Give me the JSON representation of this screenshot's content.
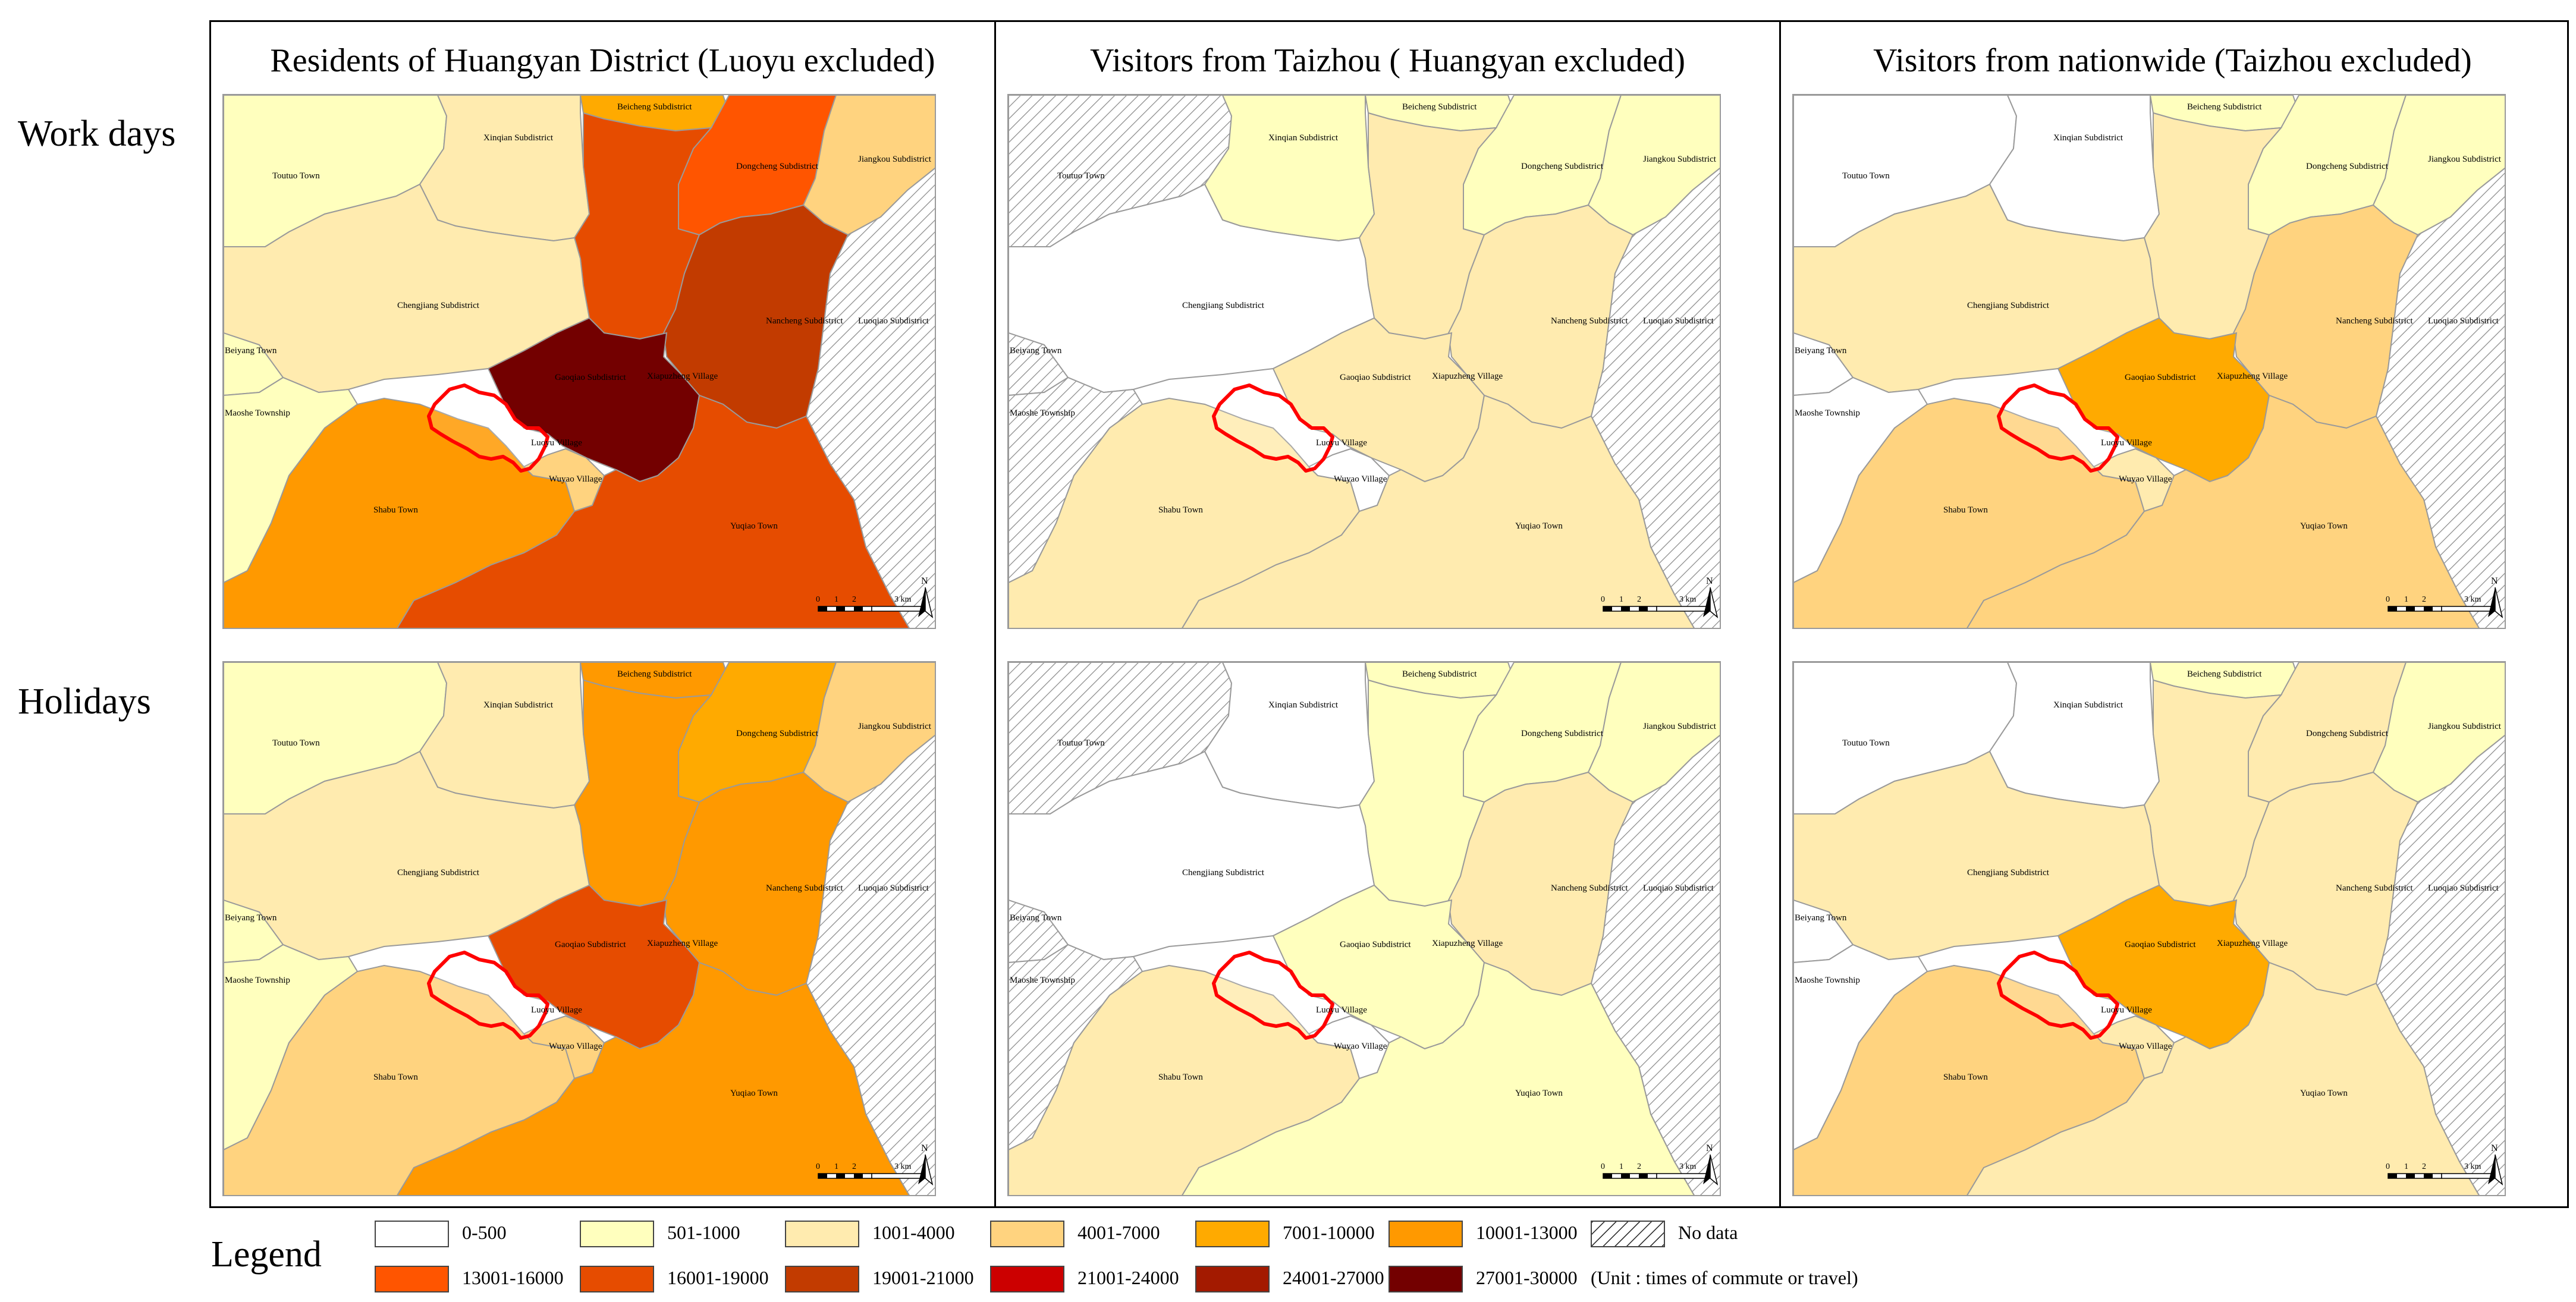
{
  "columns": [
    {
      "title": "Residents of Huangyan District (Luoyu excluded)"
    },
    {
      "title": "Visitors from Taizhou ( Huangyan excluded)"
    },
    {
      "title": "Visitors from nationwide (Taizhou excluded)"
    }
  ],
  "rows": [
    {
      "label": "Work days"
    },
    {
      "label": "Holidays"
    }
  ],
  "place_labels": {
    "beicheng": "Beicheng Subdistrict",
    "xinqian": "Xinqian Subdistrict",
    "toutuo": "Toutuo Town",
    "dongcheng": "Dongcheng Subdistrict",
    "jiangkou": "Jiangkou Subdistrict",
    "chengjiang": "Chengjiang Subdistrict",
    "nancheng": "Nancheng Subdistrict",
    "luoqiao": "Luoqiao Subdistrict",
    "beiyang": "Beiyang Town",
    "gaoqiao": "Gaoqiao Subdistrict",
    "xiapuzheng": "Xiapuzheng Village",
    "maoshe": "Maoshe Township",
    "luoyu": "Luoyu Village",
    "wuyao": "Wuyao Village",
    "shabu": "Shabu Town",
    "yuqiao": "Yuqiao Town"
  },
  "scale_bar": {
    "ticks": [
      "0",
      "1",
      "2",
      "3 km"
    ]
  },
  "north_arrow": "N",
  "legend": {
    "title": "Legend",
    "classes": [
      {
        "label": "0-500",
        "color": "#ffffff"
      },
      {
        "label": "501-1000",
        "color": "#ffffbe"
      },
      {
        "label": "1001-4000",
        "color": "#ffebaf"
      },
      {
        "label": "4001-7000",
        "color": "#ffd37f"
      },
      {
        "label": "7001-10000",
        "color": "#ffaa00"
      },
      {
        "label": "10001-13000",
        "color": "#ff9900"
      },
      {
        "label": "13001-16000",
        "color": "#ff5500"
      },
      {
        "label": "16001-19000",
        "color": "#e64c00"
      },
      {
        "label": "19001-21000",
        "color": "#c23b00"
      },
      {
        "label": "21001-24000",
        "color": "#cc0000"
      },
      {
        "label": "24001-27000",
        "color": "#a31a00"
      },
      {
        "label": "27001-30000",
        "color": "#730000"
      }
    ],
    "no_data": "No data",
    "unit_note": "(Unit : times of commute or travel)"
  },
  "maps": [
    {
      "row": "Work days",
      "column": "Residents of Huangyan District (Luoyu excluded)",
      "classes": {
        "toutuo": "501-1000",
        "xinqian": "1001-4000",
        "beicheng": "7001-10000",
        "dongcheng": "13001-16000",
        "jiangkou": "4001-7000",
        "chengjiang": "1001-4000",
        "north_central": "16001-19000",
        "nancheng": "19001-21000",
        "gaoqiao": "27001-30000",
        "beiyang": "501-1000",
        "maoshe": "501-1000",
        "shabu": "10001-13000",
        "yuqiao": "16001-19000",
        "wuyao": "4001-7000"
      }
    },
    {
      "row": "Work days",
      "column": "Visitors from Taizhou ( Huangyan excluded)",
      "classes": {
        "toutuo": "No data",
        "xinqian": "501-1000",
        "beicheng": "501-1000",
        "dongcheng": "501-1000",
        "jiangkou": "501-1000",
        "chengjiang": "0-500",
        "north_central": "1001-4000",
        "nancheng": "1001-4000",
        "gaoqiao": "1001-4000",
        "beiyang": "No data",
        "maoshe": "No data",
        "shabu": "1001-4000",
        "yuqiao": "1001-4000",
        "wuyao": "0-500"
      }
    },
    {
      "row": "Work days",
      "column": "Visitors from nationwide (Taizhou excluded)",
      "classes": {
        "toutuo": "0-500",
        "xinqian": "0-500",
        "beicheng": "501-1000",
        "dongcheng": "501-1000",
        "jiangkou": "501-1000",
        "chengjiang": "1001-4000",
        "north_central": "1001-4000",
        "nancheng": "4001-7000",
        "gaoqiao": "7001-10000",
        "beiyang": "0-500",
        "maoshe": "0-500",
        "shabu": "4001-7000",
        "yuqiao": "4001-7000",
        "wuyao": "1001-4000"
      }
    },
    {
      "row": "Holidays",
      "column": "Residents of Huangyan District (Luoyu excluded)",
      "classes": {
        "toutuo": "501-1000",
        "xinqian": "1001-4000",
        "beicheng": "10001-13000",
        "dongcheng": "7001-10000",
        "jiangkou": "4001-7000",
        "chengjiang": "1001-4000",
        "north_central": "10001-13000",
        "nancheng": "10001-13000",
        "gaoqiao": "16001-19000",
        "beiyang": "501-1000",
        "maoshe": "501-1000",
        "shabu": "4001-7000",
        "yuqiao": "10001-13000",
        "wuyao": "4001-7000"
      }
    },
    {
      "row": "Holidays",
      "column": "Visitors from Taizhou ( Huangyan excluded)",
      "classes": {
        "toutuo": "No data",
        "xinqian": "0-500",
        "beicheng": "501-1000",
        "dongcheng": "501-1000",
        "jiangkou": "501-1000",
        "chengjiang": "0-500",
        "north_central": "501-1000",
        "nancheng": "1001-4000",
        "gaoqiao": "501-1000",
        "beiyang": "No data",
        "maoshe": "No data",
        "shabu": "1001-4000",
        "yuqiao": "501-1000",
        "wuyao": "0-500"
      }
    },
    {
      "row": "Holidays",
      "column": "Visitors from nationwide (Taizhou excluded)",
      "classes": {
        "toutuo": "0-500",
        "xinqian": "0-500",
        "beicheng": "501-1000",
        "dongcheng": "1001-4000",
        "jiangkou": "501-1000",
        "chengjiang": "1001-4000",
        "north_central": "1001-4000",
        "nancheng": "1001-4000",
        "gaoqiao": "7001-10000",
        "beiyang": "0-500",
        "maoshe": "0-500",
        "shabu": "4001-7000",
        "yuqiao": "1001-4000",
        "wuyao": "1001-4000"
      }
    }
  ]
}
